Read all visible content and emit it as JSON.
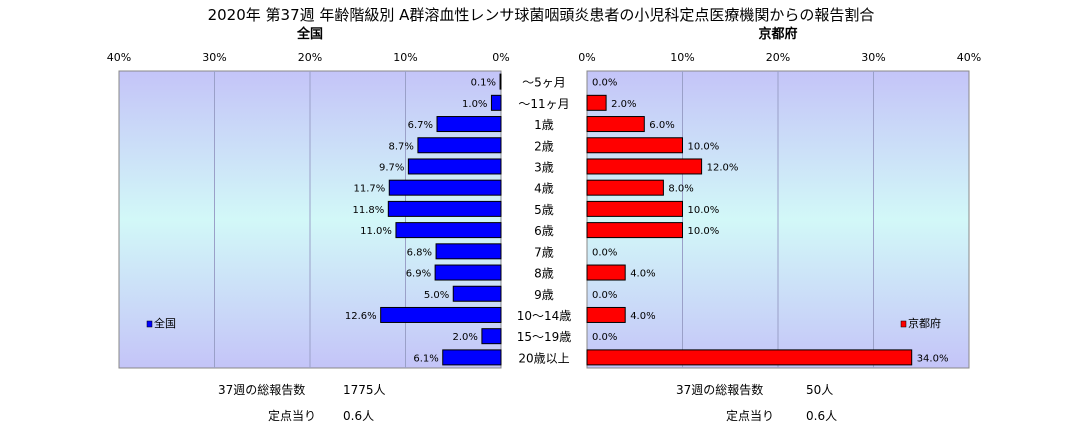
{
  "title": "2020年 第37週 年齢階級別 A群溶血性レンサ球菌咽頭炎患者の小児科定点医療機関からの報告割合",
  "chart_data": {
    "type": "bar",
    "orientation": "horizontal-butterfly",
    "categories": [
      "～5ヶ月",
      "～11ヶ月",
      "1歳",
      "2歳",
      "3歳",
      "4歳",
      "5歳",
      "6歳",
      "7歳",
      "8歳",
      "9歳",
      "10～14歳",
      "15～19歳",
      "20歳以上"
    ],
    "xlim": [
      0,
      40
    ],
    "tick_labels": [
      "0%",
      "10%",
      "20%",
      "30%",
      "40%"
    ],
    "grid": true,
    "panels": [
      {
        "subtitle": "全国",
        "legend": "全国",
        "legend_position": "left",
        "direction": "left",
        "color": "#0000ff",
        "values": [
          0.1,
          1.0,
          6.7,
          8.7,
          9.7,
          11.7,
          11.8,
          11.0,
          6.8,
          6.9,
          5.0,
          12.6,
          2.0,
          6.1
        ],
        "labels": [
          "0.1%",
          "1.0%",
          "6.7%",
          "8.7%",
          "9.7%",
          "11.7%",
          "11.8%",
          "11.0%",
          "6.8%",
          "6.9%",
          "5.0%",
          "12.6%",
          "2.0%",
          "6.1%"
        ]
      },
      {
        "subtitle": "京都府",
        "legend": "京都府",
        "legend_position": "right",
        "direction": "right",
        "color": "#ff0000",
        "values": [
          0,
          2,
          6,
          10,
          12,
          8,
          10,
          10,
          0,
          4,
          0,
          4,
          0,
          34
        ],
        "labels": [
          "0.0%",
          "2.0%",
          "6.0%",
          "10.0%",
          "12.0%",
          "8.0%",
          "10.0%",
          "10.0%",
          "0.0%",
          "4.0%",
          "0.0%",
          "4.0%",
          "0.0%",
          "34.0%"
        ]
      }
    ]
  },
  "footer": {
    "national": {
      "reports_label": "37週の総報告数",
      "reports_value": "1775人",
      "per_site_label": "定点当り",
      "per_site_value": "0.6人"
    },
    "kyoto": {
      "reports_label": "37週の総報告数",
      "reports_value": "50人",
      "per_site_label": "定点当り",
      "per_site_value": "0.6人"
    }
  }
}
